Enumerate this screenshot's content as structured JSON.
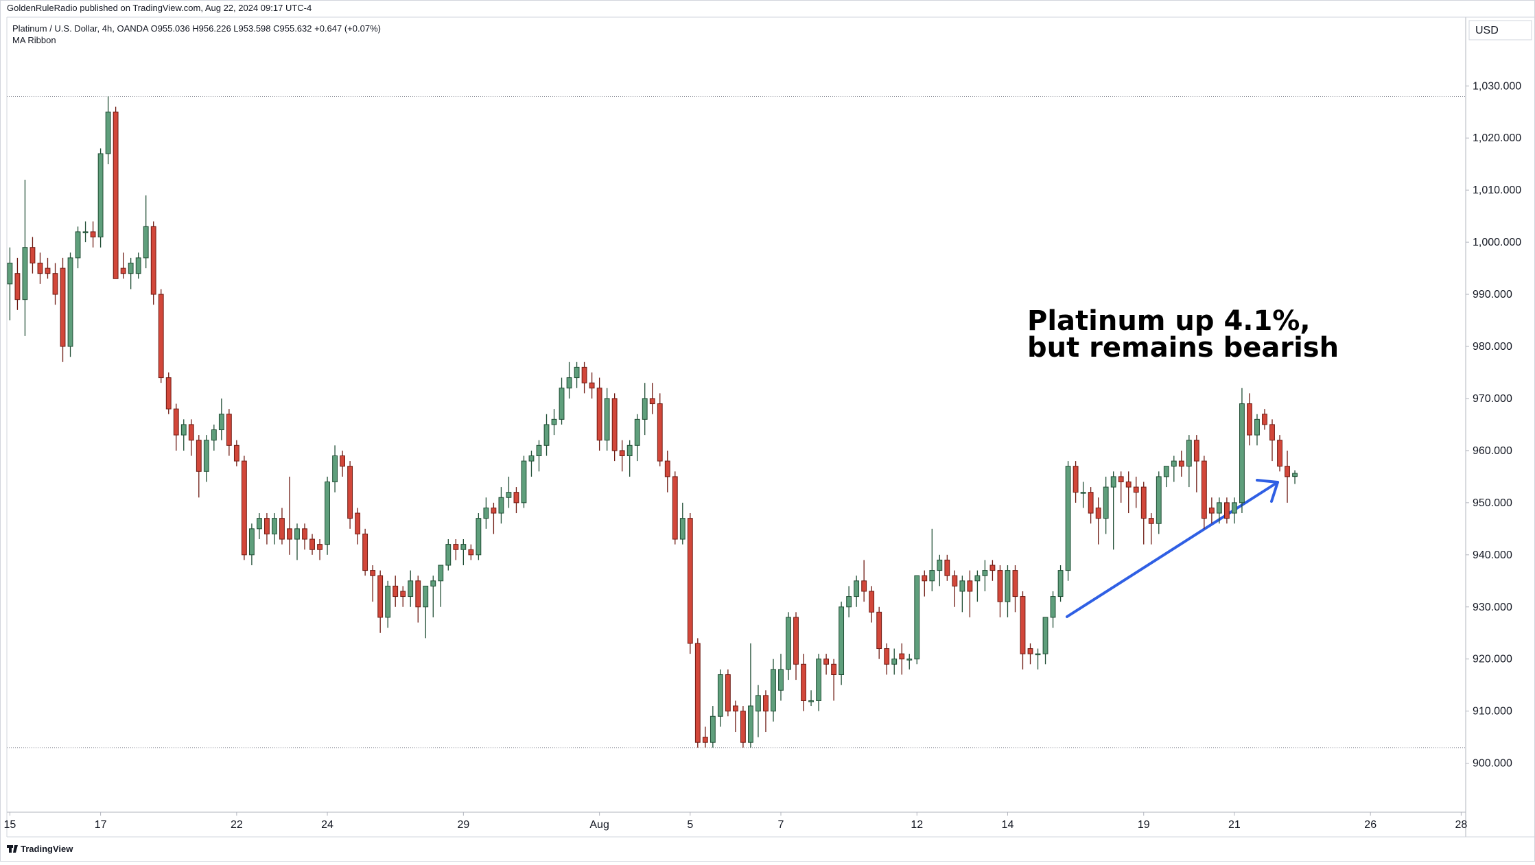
{
  "chart_data": {
    "type": "candlestick",
    "published": "GoldenRuleRadio published on TradingView.com, Aug 22, 2024 09:17 UTC-4",
    "symbol_line": "Platinum / U.S. Dollar, 4h, OANDA  O955.036  H956.226  L953.598  C955.632  +0.647 (+0.07%)",
    "indicator": "MA Ribbon",
    "currency": "USD",
    "annotation": [
      "Platinum up 4.1%,",
      "but remains bearish"
    ],
    "footer": "TradingView",
    "up_color": "#5f9f7c",
    "down_color": "#d2473a",
    "range_lines": [
      1028,
      903
    ],
    "ylim": [
      890.6,
      1043.2
    ],
    "yticks": [
      {
        "value": 900,
        "label": "900.000"
      },
      {
        "value": 910,
        "label": "910.000"
      },
      {
        "value": 920,
        "label": "920.000"
      },
      {
        "value": 930,
        "label": "930.000"
      },
      {
        "value": 940,
        "label": "940.000"
      },
      {
        "value": 950,
        "label": "950.000"
      },
      {
        "value": 960,
        "label": "960.000"
      },
      {
        "value": 970,
        "label": "970.000"
      },
      {
        "value": 980,
        "label": "980.000"
      },
      {
        "value": 990,
        "label": "990.000"
      },
      {
        "value": 1000,
        "label": "1,000.000"
      },
      {
        "value": 1010,
        "label": "1,010.000"
      },
      {
        "value": 1020,
        "label": "1,020.000"
      },
      {
        "value": 1030,
        "label": "1,030.000"
      }
    ],
    "xlim": [
      -0.4,
      192.6
    ],
    "xticks": [
      {
        "value": 0,
        "label": "15"
      },
      {
        "value": 12,
        "label": "17"
      },
      {
        "value": 30,
        "label": "22"
      },
      {
        "value": 42,
        "label": "24"
      },
      {
        "value": 60,
        "label": "29"
      },
      {
        "value": 78,
        "label": "Aug"
      },
      {
        "value": 90,
        "label": "5"
      },
      {
        "value": 102,
        "label": "7"
      },
      {
        "value": 120,
        "label": "12"
      },
      {
        "value": 132,
        "label": "14"
      },
      {
        "value": 150,
        "label": "19"
      },
      {
        "value": 162,
        "label": "21"
      },
      {
        "value": 180,
        "label": "26"
      },
      {
        "value": 192,
        "label": "28"
      }
    ],
    "ohlc": [
      [
        992,
        999,
        985,
        996
      ],
      [
        994,
        997,
        987,
        989
      ],
      [
        989,
        1012,
        982,
        999
      ],
      [
        999,
        1001,
        994,
        996
      ],
      [
        996,
        998,
        992,
        994
      ],
      [
        995,
        997,
        993,
        994
      ],
      [
        994,
        996,
        988,
        990
      ],
      [
        995,
        997,
        977,
        980
      ],
      [
        980,
        998,
        978,
        997
      ],
      [
        997,
        1003,
        995,
        1002
      ],
      [
        1002,
        1004,
        1000,
        1002
      ],
      [
        1002,
        1004,
        999,
        1001
      ],
      [
        1001,
        1018,
        999,
        1017
      ],
      [
        1017,
        1028,
        1015,
        1025
      ],
      [
        1025,
        1026,
        993,
        993
      ],
      [
        995,
        998,
        993,
        994
      ],
      [
        994,
        997,
        991,
        996
      ],
      [
        994,
        998,
        993,
        997
      ],
      [
        997,
        1009,
        995,
        1003
      ],
      [
        1003,
        1004,
        988,
        990
      ],
      [
        990,
        991,
        973,
        974
      ],
      [
        974,
        975,
        967,
        968
      ],
      [
        968,
        969,
        960,
        963
      ],
      [
        963,
        966,
        960,
        965
      ],
      [
        965,
        966,
        959,
        962
      ],
      [
        962,
        963,
        951,
        956
      ],
      [
        956,
        963,
        954,
        962
      ],
      [
        962,
        965,
        960,
        964
      ],
      [
        964,
        970,
        962,
        967
      ],
      [
        967,
        968,
        959,
        961
      ],
      [
        961,
        962,
        957,
        958
      ],
      [
        958,
        959,
        939,
        940
      ],
      [
        940,
        946,
        938,
        945
      ],
      [
        945,
        948,
        943,
        947
      ],
      [
        947,
        948,
        942,
        944
      ],
      [
        944,
        948,
        942,
        947
      ],
      [
        947,
        949,
        942,
        943
      ],
      [
        945,
        955,
        940,
        943
      ],
      [
        943,
        946,
        939,
        945
      ],
      [
        945,
        946,
        941,
        943
      ],
      [
        943,
        944,
        940,
        941
      ],
      [
        942,
        943,
        939,
        941
      ],
      [
        942,
        955,
        940,
        954
      ],
      [
        954,
        961,
        952,
        959
      ],
      [
        959,
        960,
        955,
        957
      ],
      [
        957,
        958,
        945,
        947
      ],
      [
        948,
        949,
        942,
        944
      ],
      [
        944,
        945,
        936,
        937
      ],
      [
        937,
        938,
        931,
        936
      ],
      [
        936,
        937,
        925,
        928
      ],
      [
        928,
        935,
        926,
        934
      ],
      [
        934,
        936,
        930,
        932
      ],
      [
        933,
        934,
        930,
        932
      ],
      [
        932,
        937,
        930,
        935
      ],
      [
        935,
        936,
        927,
        930
      ],
      [
        930,
        934,
        924,
        934
      ],
      [
        934,
        936,
        928,
        935
      ],
      [
        935,
        937,
        930,
        938
      ],
      [
        938,
        943,
        937,
        942
      ],
      [
        942,
        943,
        939,
        941
      ],
      [
        941,
        943,
        938,
        942
      ],
      [
        941,
        942,
        939,
        940
      ],
      [
        940,
        948,
        939,
        947
      ],
      [
        947,
        951,
        945,
        949
      ],
      [
        949,
        950,
        944,
        948
      ],
      [
        948,
        953,
        946,
        951
      ],
      [
        951,
        955,
        949,
        952
      ],
      [
        952,
        953,
        948,
        950
      ],
      [
        950,
        959,
        949,
        958
      ],
      [
        958,
        960,
        955,
        959
      ],
      [
        959,
        962,
        956,
        961
      ],
      [
        961,
        967,
        959,
        965
      ],
      [
        965,
        968,
        963,
        966
      ],
      [
        966,
        974,
        965,
        972
      ],
      [
        972,
        977,
        970,
        974
      ],
      [
        974,
        977,
        972,
        976
      ],
      [
        976,
        977,
        971,
        973
      ],
      [
        973,
        975,
        970,
        972
      ],
      [
        972,
        974,
        960,
        962
      ],
      [
        962,
        972,
        960,
        970
      ],
      [
        970,
        971,
        958,
        960
      ],
      [
        960,
        962,
        956,
        959
      ],
      [
        959,
        962,
        955,
        961
      ],
      [
        961,
        967,
        958,
        966
      ],
      [
        966,
        973,
        963,
        970
      ],
      [
        970,
        973,
        967,
        969
      ],
      [
        969,
        971,
        957,
        958
      ],
      [
        958,
        960,
        952,
        955
      ],
      [
        955,
        956,
        942,
        943
      ],
      [
        943,
        950,
        942,
        947
      ],
      [
        947,
        948,
        921,
        923
      ],
      [
        923,
        924,
        903,
        904
      ],
      [
        905,
        907,
        903,
        904
      ],
      [
        904,
        911,
        903,
        909
      ],
      [
        909,
        918,
        907,
        917
      ],
      [
        917,
        918,
        909,
        910
      ],
      [
        911,
        912,
        906,
        910
      ],
      [
        910,
        911,
        903,
        904
      ],
      [
        904,
        923,
        903,
        911
      ],
      [
        910,
        915,
        905,
        913
      ],
      [
        913,
        914,
        906,
        910
      ],
      [
        910,
        920,
        908,
        918
      ],
      [
        914,
        921,
        912,
        918
      ],
      [
        918,
        929,
        916,
        928
      ],
      [
        928,
        929,
        916,
        919
      ],
      [
        919,
        921,
        910,
        912
      ],
      [
        912,
        914,
        911,
        912
      ],
      [
        912,
        921,
        910,
        920
      ],
      [
        920,
        921,
        917,
        919
      ],
      [
        919,
        920,
        912,
        917
      ],
      [
        917,
        931,
        915,
        930
      ],
      [
        930,
        934,
        928,
        932
      ],
      [
        932,
        936,
        930,
        935
      ],
      [
        935,
        939,
        931,
        933
      ],
      [
        933,
        934,
        927,
        929
      ],
      [
        929,
        930,
        920,
        922
      ],
      [
        922,
        923,
        917,
        919
      ],
      [
        919,
        922,
        917,
        920
      ],
      [
        921,
        923,
        917,
        920
      ],
      [
        920,
        921,
        918,
        920
      ],
      [
        920,
        936,
        919,
        936
      ],
      [
        936,
        937,
        932,
        935
      ],
      [
        935,
        945,
        933,
        937
      ],
      [
        937,
        940,
        934,
        939
      ],
      [
        939,
        940,
        935,
        936
      ],
      [
        936,
        937,
        930,
        934
      ],
      [
        933,
        936,
        929,
        935
      ],
      [
        935,
        937,
        928,
        933
      ],
      [
        935,
        937,
        931,
        936
      ],
      [
        936,
        939,
        933,
        937
      ],
      [
        938,
        939,
        935,
        937
      ],
      [
        937,
        938,
        928,
        931
      ],
      [
        931,
        938,
        928,
        937
      ],
      [
        937,
        938,
        929,
        932
      ],
      [
        932,
        933,
        918,
        921
      ],
      [
        922,
        923,
        919,
        921
      ],
      [
        921,
        922,
        918,
        921
      ],
      [
        921,
        928,
        919,
        928
      ],
      [
        928,
        933,
        926,
        932
      ],
      [
        932,
        938,
        931,
        937
      ],
      [
        937,
        958,
        935,
        957
      ],
      [
        957,
        958,
        950,
        952
      ],
      [
        952,
        954,
        949,
        952
      ],
      [
        952,
        953,
        946,
        948
      ],
      [
        949,
        951,
        942,
        947
      ],
      [
        947,
        955,
        944,
        953
      ],
      [
        953,
        956,
        941,
        955
      ],
      [
        955,
        956,
        950,
        954
      ],
      [
        954,
        956,
        948,
        953
      ],
      [
        953,
        955,
        949,
        952
      ],
      [
        953,
        954,
        942,
        947
      ],
      [
        947,
        948,
        942,
        946
      ],
      [
        946,
        956,
        944,
        955
      ],
      [
        955,
        957,
        953,
        957
      ],
      [
        957,
        959,
        954,
        958
      ],
      [
        958,
        960,
        955,
        957
      ],
      [
        957,
        963,
        953,
        962
      ],
      [
        962,
        963,
        952,
        958
      ],
      [
        958,
        959,
        945,
        947
      ],
      [
        949,
        951,
        946,
        948
      ],
      [
        948,
        951,
        946,
        950
      ],
      [
        950,
        951,
        946,
        947
      ],
      [
        948,
        951,
        946,
        950
      ],
      [
        950,
        972,
        948,
        969
      ],
      [
        969,
        971,
        961,
        963
      ],
      [
        963,
        967,
        961,
        966
      ],
      [
        967,
        968,
        964,
        965
      ],
      [
        965,
        966,
        958,
        962
      ],
      [
        962,
        963,
        956,
        957
      ],
      [
        957,
        960,
        950,
        955
      ],
      [
        955.036,
        956.226,
        953.598,
        955.632
      ]
    ]
  }
}
